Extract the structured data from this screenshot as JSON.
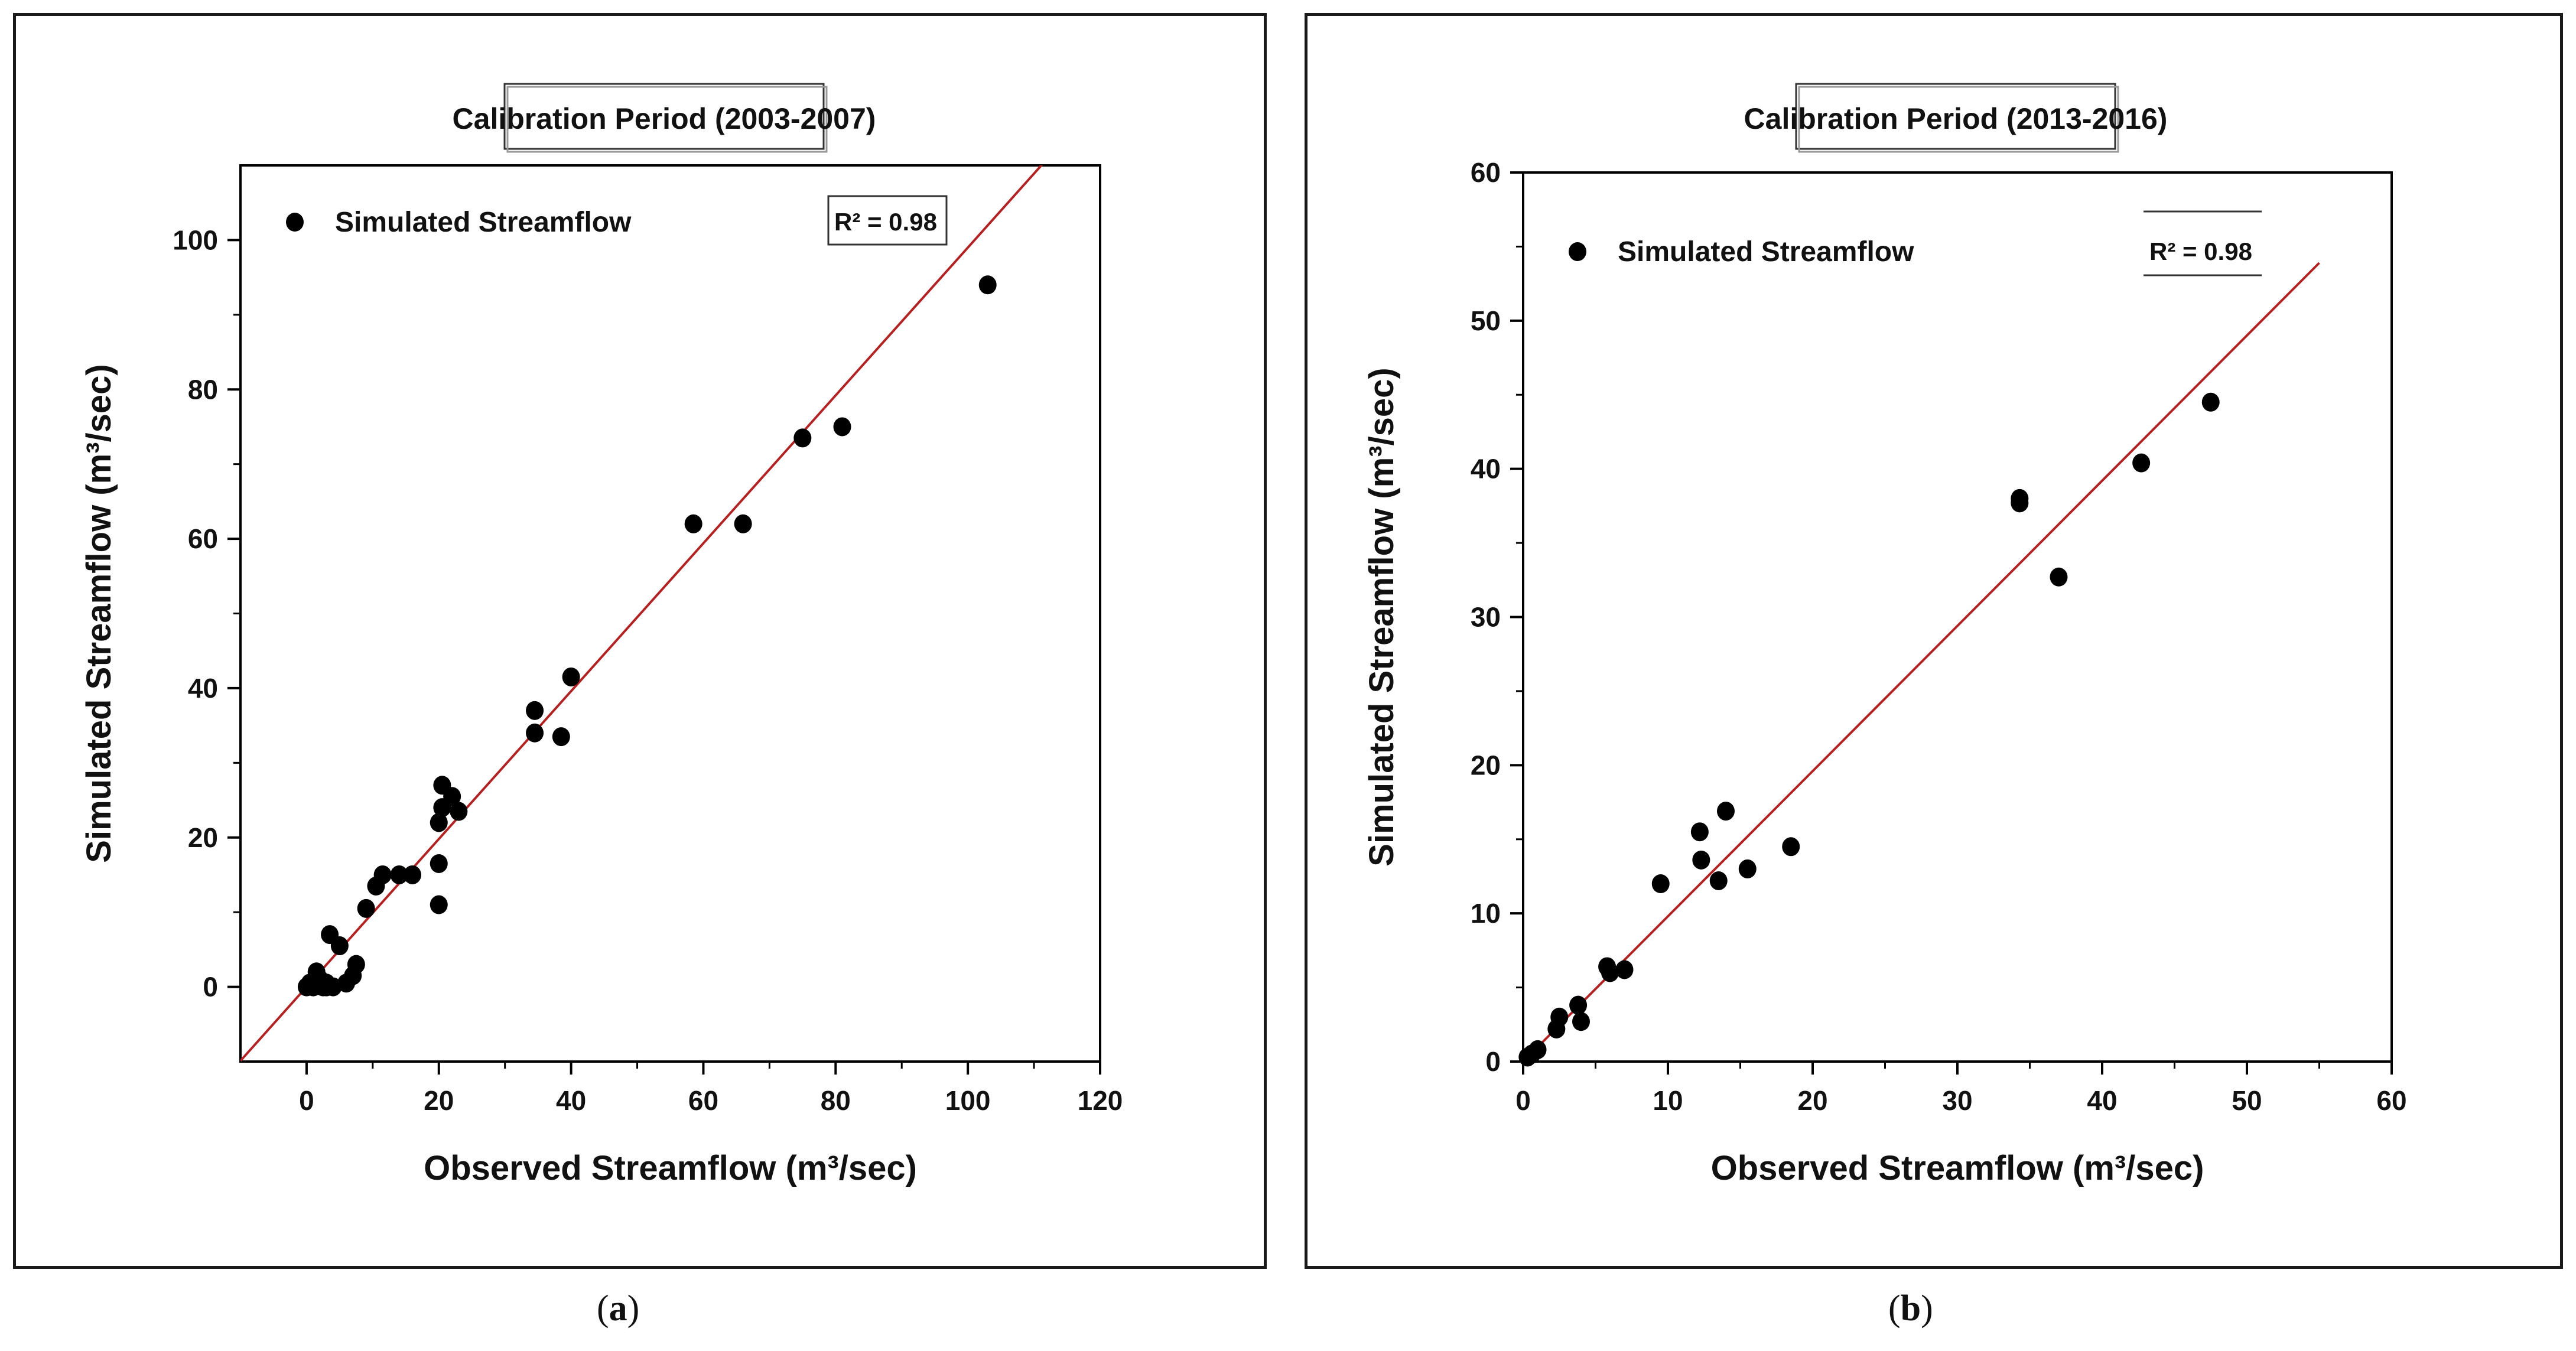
{
  "colors": {
    "point": "#000000",
    "fit_line": "#b22222",
    "axis": "#000000",
    "frame": "#1a1a1a"
  },
  "chart_data": [
    {
      "type": "scatter",
      "panel_label": "a",
      "title": "Calibration Period (2003-2007)",
      "xlabel": "Observed Streamflow (m³/sec)",
      "ylabel": "Simulated Streamflow (m³/sec)",
      "xlim": [
        -10,
        120
      ],
      "ylim": [
        -10,
        110
      ],
      "xticks": [
        0,
        20,
        40,
        60,
        80,
        100,
        120
      ],
      "yticks": [
        0,
        20,
        40,
        60,
        80,
        100
      ],
      "legend": {
        "label": "Simulated Streamflow",
        "position": "top-left"
      },
      "r2_label": "R² = 0.98",
      "grid": false,
      "fit_line": {
        "slope": 0.99,
        "intercept": 0,
        "x_range": [
          -10,
          120
        ]
      },
      "series": [
        {
          "name": "Simulated Streamflow",
          "x": [
            0,
            0.5,
            1,
            1.5,
            2,
            2.5,
            3,
            3.5,
            4,
            5,
            6,
            7,
            7.5,
            9,
            10.5,
            11.5,
            14,
            16,
            20,
            20,
            20,
            20.5,
            20.5,
            22,
            23,
            34.5,
            34.5,
            38.5,
            40,
            58.5,
            66,
            75,
            81,
            103,
            1.5,
            3
          ],
          "y": [
            0,
            0.5,
            0,
            2,
            1,
            0,
            0.5,
            7,
            0,
            5.5,
            0.5,
            1.5,
            3,
            10.5,
            13.5,
            15,
            15,
            15,
            11,
            16.5,
            22,
            24,
            27,
            25.5,
            23.5,
            37,
            34,
            33.5,
            41.5,
            62,
            62,
            73.5,
            75,
            94,
            1,
            0
          ]
        }
      ]
    },
    {
      "type": "scatter",
      "panel_label": "b",
      "title": "Calibration Period (2013-2016)",
      "xlabel": "Observed Streamflow (m³/sec)",
      "ylabel": "Simulated Streamflow (m³/sec)",
      "xlim": [
        0,
        60
      ],
      "ylim": [
        0,
        60
      ],
      "xticks": [
        0,
        10,
        20,
        30,
        40,
        50,
        60
      ],
      "yticks": [
        0,
        10,
        20,
        30,
        40,
        50,
        60
      ],
      "legend": {
        "label": "Simulated Streamflow",
        "position": "top-left"
      },
      "r2_label": "R² = 0.98",
      "grid": false,
      "fit_line": {
        "slope": 0.98,
        "intercept": 0,
        "x_range": [
          0,
          55
        ]
      },
      "series": [
        {
          "name": "Simulated Streamflow",
          "x": [
            0.3,
            0.6,
            1,
            2.3,
            2.5,
            3.8,
            4,
            5.8,
            6,
            7,
            9.5,
            12.2,
            12.3,
            13.5,
            14,
            15.5,
            18.5,
            34.3,
            34.3,
            37,
            42.7,
            47.5
          ],
          "y": [
            0.3,
            0.5,
            0.8,
            2.2,
            3,
            3.8,
            2.7,
            6.4,
            6,
            6.2,
            12,
            15.5,
            13.6,
            12.2,
            16.9,
            13,
            14.5,
            38,
            37.7,
            32.7,
            40.4,
            44.5
          ]
        }
      ]
    }
  ]
}
